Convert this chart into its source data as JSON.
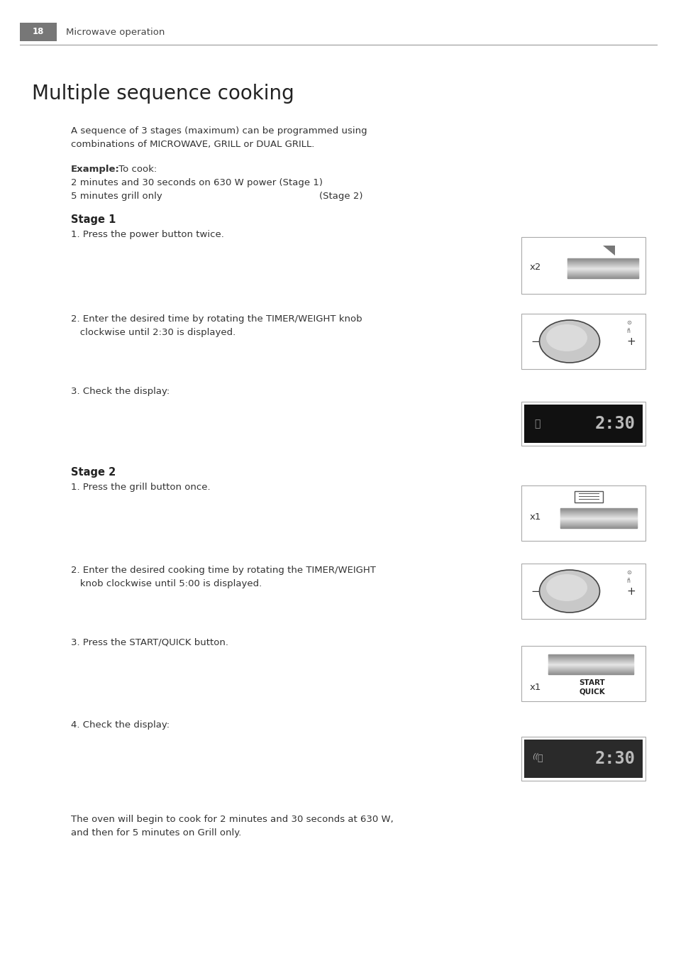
{
  "page_num": "18",
  "header_text": "Microwave operation",
  "title": "Multiple sequence cooking",
  "bg_color": "#ffffff",
  "header_bg": "#777777",
  "header_text_color": "#ffffff",
  "body_text_color": "#333333",
  "para1_line1": "A sequence of 3 stages (maximum) can be programmed using",
  "para1_line2": "combinations of MICROWAVE, GRILL or DUAL GRILL.",
  "example_bold": "Example:",
  "example_rest": " To cook:",
  "example_line2": "2 minutes and 30 seconds on 630 W power (Stage 1)",
  "example_line3a": "5 minutes grill only",
  "example_line3b": "(Stage 2)",
  "stage1_title": "Stage 1",
  "stage1_step1": "1. Press the power button twice.",
  "stage1_step2a": "2. Enter the desired time by rotating the TIMER/WEIGHT knob",
  "stage1_step2b": "   clockwise until 2:30 is displayed.",
  "stage1_step3": "3. Check the display:",
  "stage2_title": "Stage 2",
  "stage2_step1": "1. Press the grill button once.",
  "stage2_step2a": "2. Enter the desired cooking time by rotating the TIMER/WEIGHT",
  "stage2_step2b": "   knob clockwise until 5:00 is displayed.",
  "stage2_step3": "3. Press the START/QUICK button.",
  "stage2_step4": "4. Check the display:",
  "footer_line1": "The oven will begin to cook for 2 minutes and 30 seconds at 630 W,",
  "footer_line2": "and then for 5 minutes on Grill only."
}
